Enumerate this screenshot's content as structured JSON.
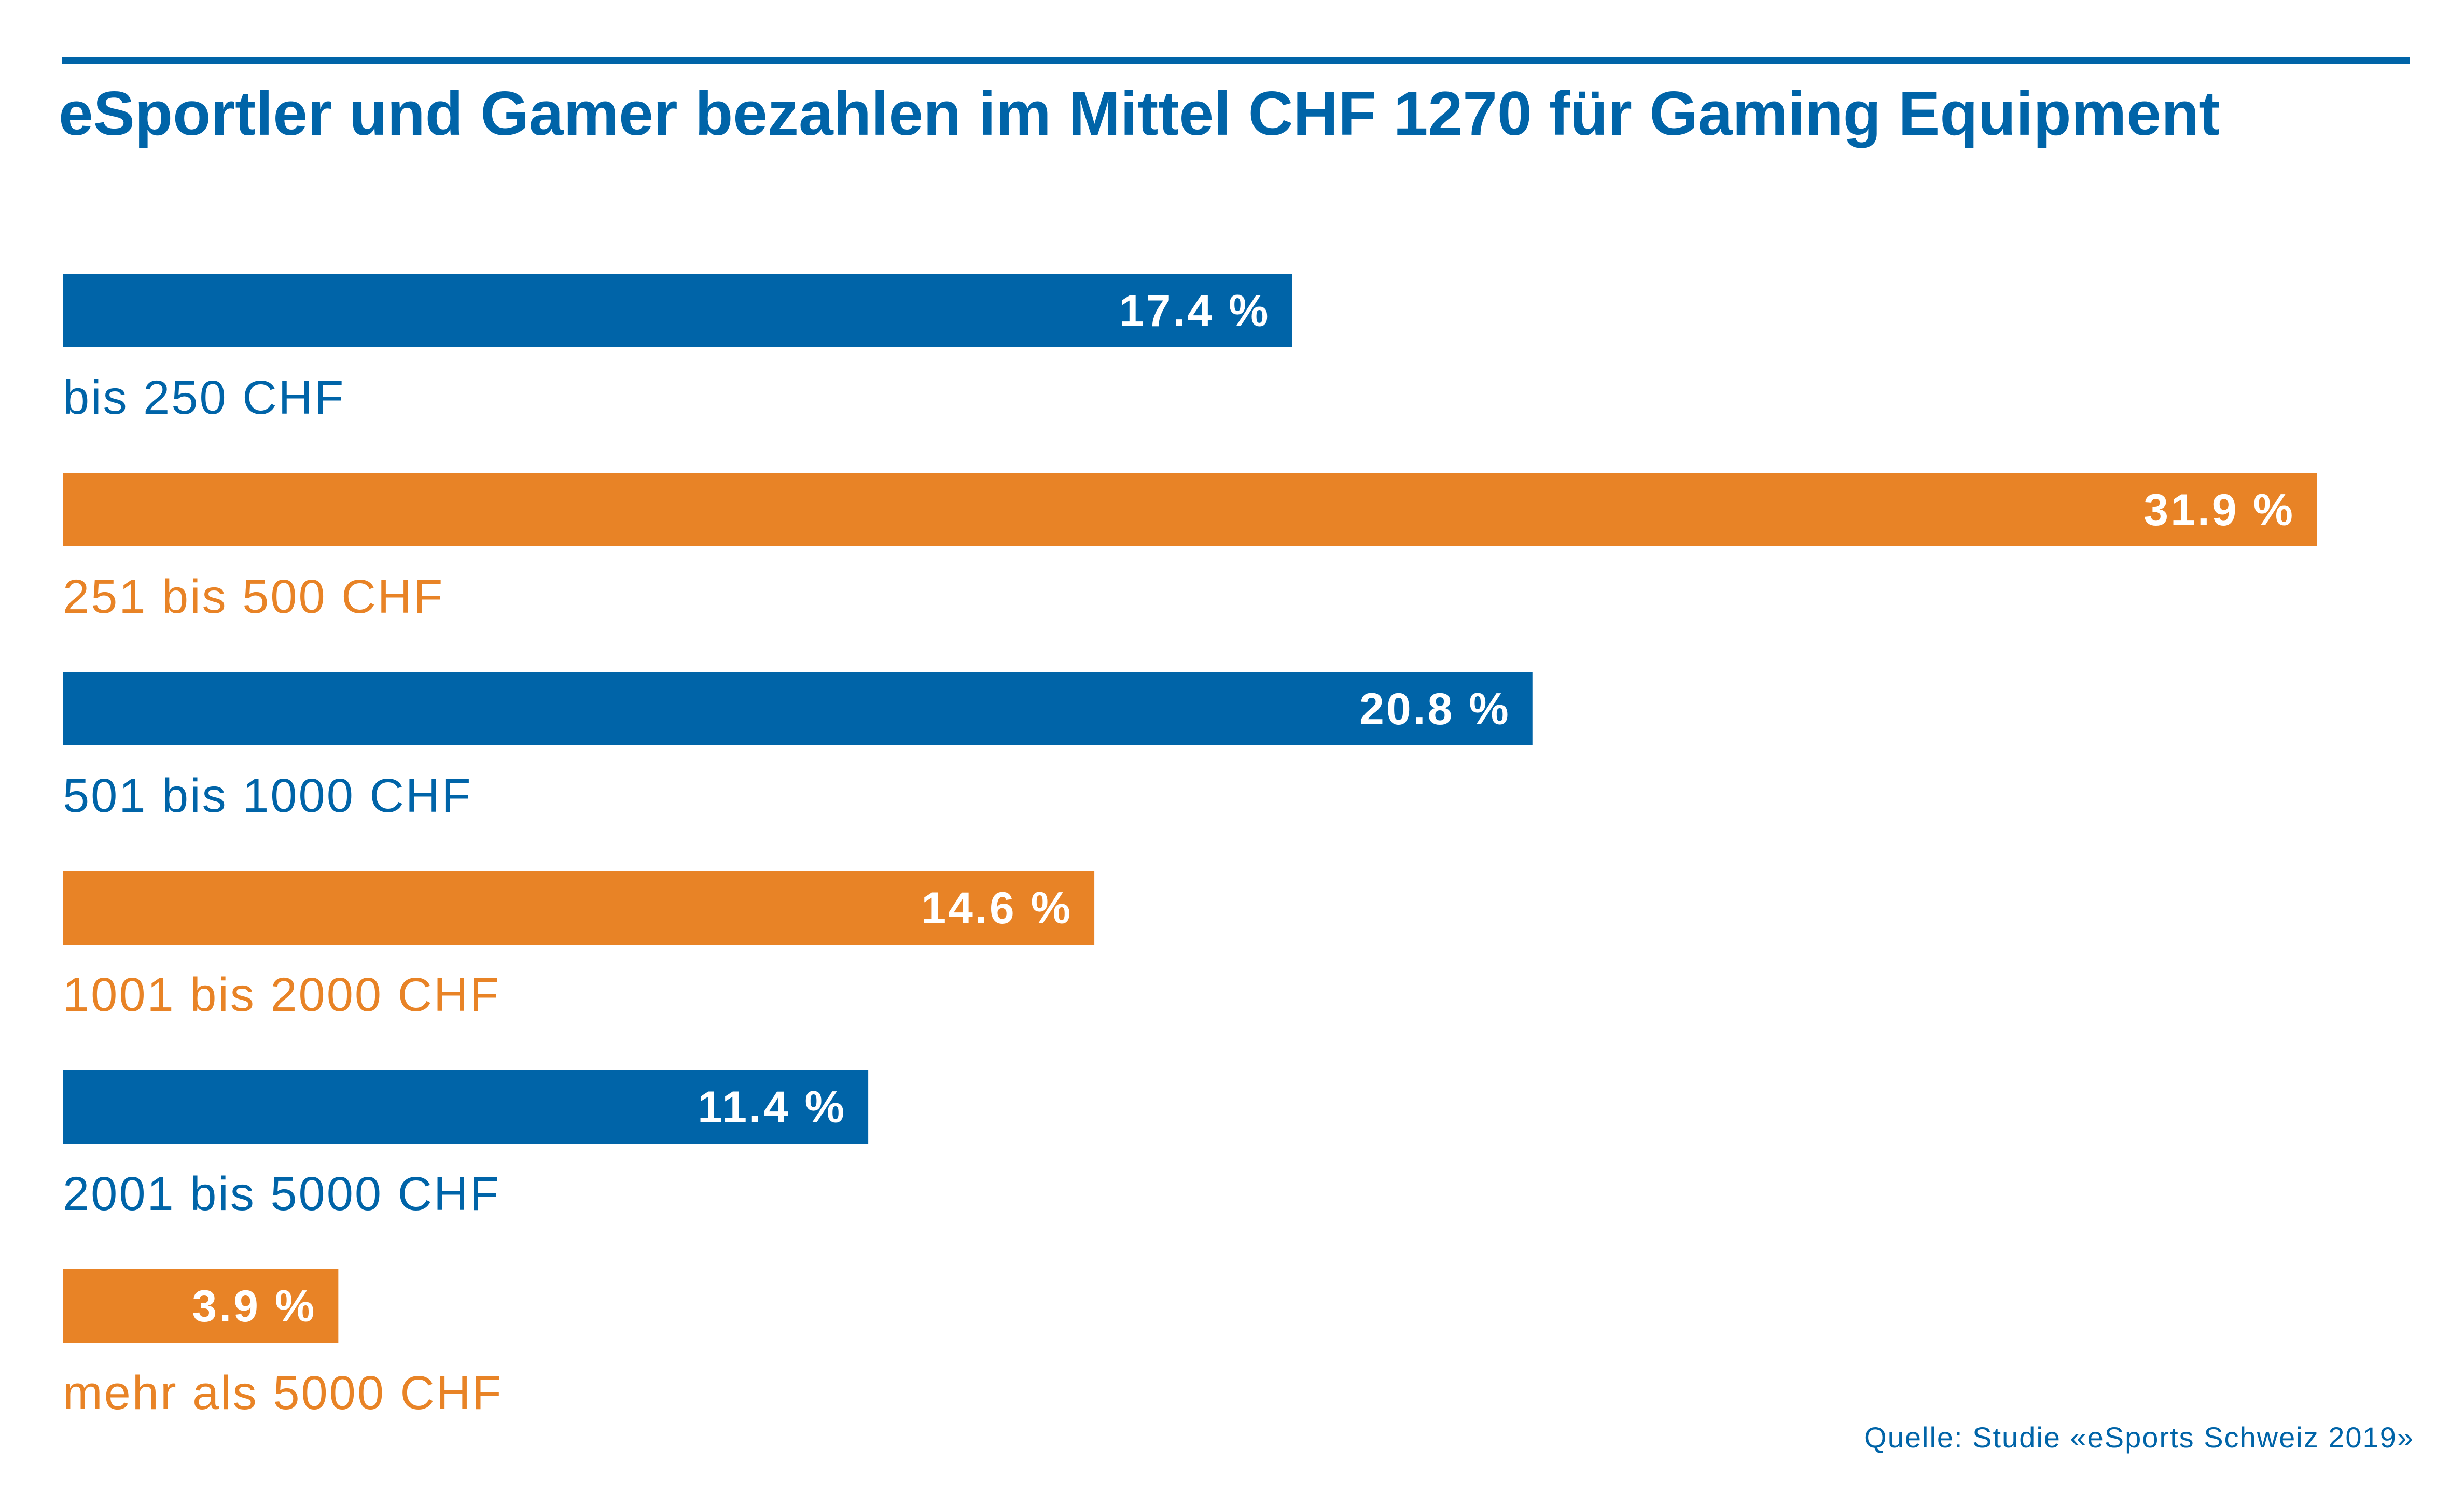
{
  "title": "eSportler und Gamer bezahlen im Mittel CHF 1270 für Gaming Equipment",
  "source": "Quelle: Studie «eSports Schweiz 2019»",
  "colors": {
    "blue": "#0064a8",
    "orange": "#e88326"
  },
  "chart_data": {
    "type": "bar",
    "orientation": "horizontal",
    "title": "eSportler und Gamer bezahlen im Mittel CHF 1270 für Gaming Equipment",
    "unit": "%",
    "xlim": [
      0,
      35
    ],
    "grid": false,
    "categories": [
      "bis 250 CHF",
      "251 bis 500 CHF",
      "501 bis 1000 CHF",
      "1001 bis 2000 CHF",
      "2001 bis 5000 CHF",
      "mehr als 5000 CHF"
    ],
    "values": [
      17.4,
      31.9,
      20.8,
      14.6,
      11.4,
      3.9
    ],
    "value_labels": [
      "17.4 %",
      "31.9 %",
      "20.8 %",
      "14.6 %",
      "11.4 %",
      "3.9 %"
    ],
    "bar_colors": [
      "#0064a8",
      "#e88326",
      "#0064a8",
      "#e88326",
      "#0064a8",
      "#e88326"
    ]
  }
}
